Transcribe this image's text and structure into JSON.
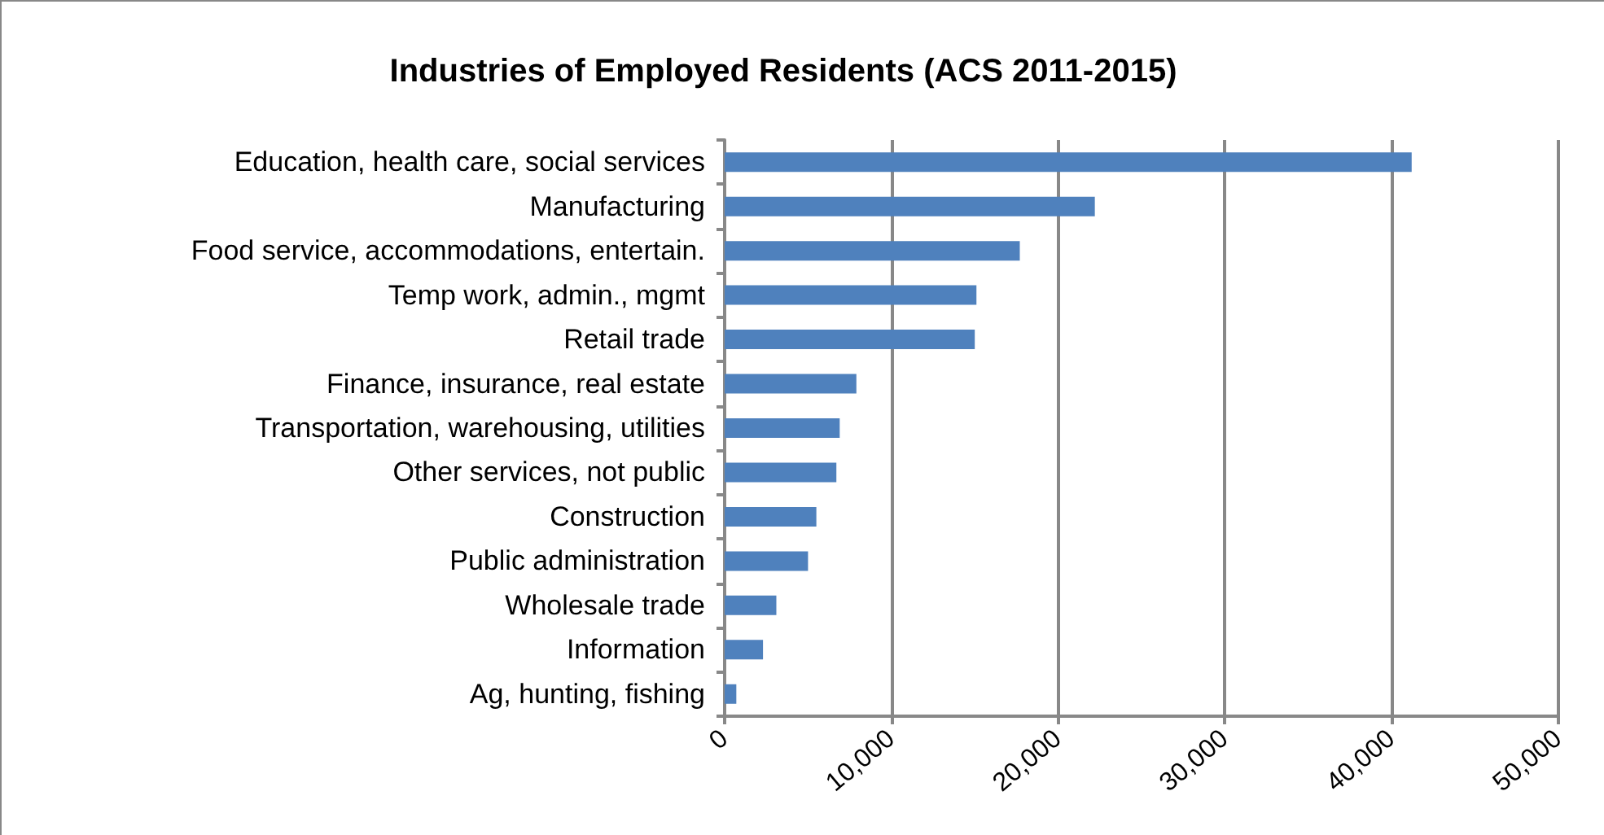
{
  "chart_data": {
    "type": "bar",
    "orientation": "horizontal",
    "title": "Industries of Employed Residents (ACS 2011-2015)",
    "categories": [
      "Education, health care, social services",
      "Manufacturing",
      "Food service, accommodations, entertain.",
      "Temp work, admin., mgmt",
      "Retail trade",
      "Finance, insurance, real estate",
      "Transportation, warehousing, utilities",
      "Other services, not public",
      "Construction",
      "Public administration",
      "Wholesale trade",
      "Information",
      "Ag, hunting, fishing"
    ],
    "values": [
      41200,
      22200,
      17700,
      15100,
      15000,
      7900,
      6900,
      6700,
      5500,
      5000,
      3100,
      2300,
      700
    ],
    "color": "#4f81bd",
    "xlim": [
      0,
      50000
    ],
    "xticks": [
      0,
      {
        "value": 10000,
        "label": "10,000"
      },
      {
        "value": 20000,
        "label": "20,000"
      },
      {
        "value": 30000,
        "label": "30,000"
      },
      {
        "value": 40000,
        "label": "40,000"
      },
      {
        "value": 50000,
        "label": "50,000"
      }
    ],
    "grid": "x"
  }
}
